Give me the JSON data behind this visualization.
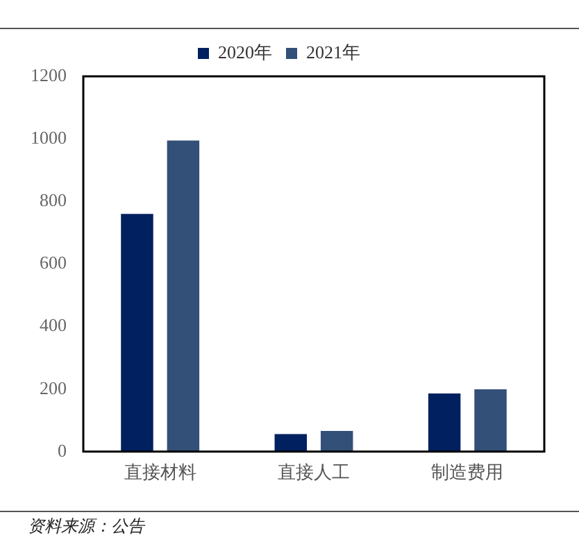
{
  "chart_data": {
    "type": "bar",
    "categories": [
      "直接材料",
      "直接人工",
      "制造费用"
    ],
    "series": [
      {
        "name": "2020年",
        "color": "#002060",
        "values": [
          760,
          56,
          186
        ]
      },
      {
        "name": "2021年",
        "color": "#325078",
        "values": [
          995,
          66,
          199
        ]
      }
    ],
    "ylim": [
      0,
      1200
    ],
    "yticks": [
      0,
      200,
      400,
      600,
      800,
      1000,
      1200
    ],
    "grid": false,
    "legend": "top",
    "annotations": [
      "资料来源：公告"
    ]
  }
}
